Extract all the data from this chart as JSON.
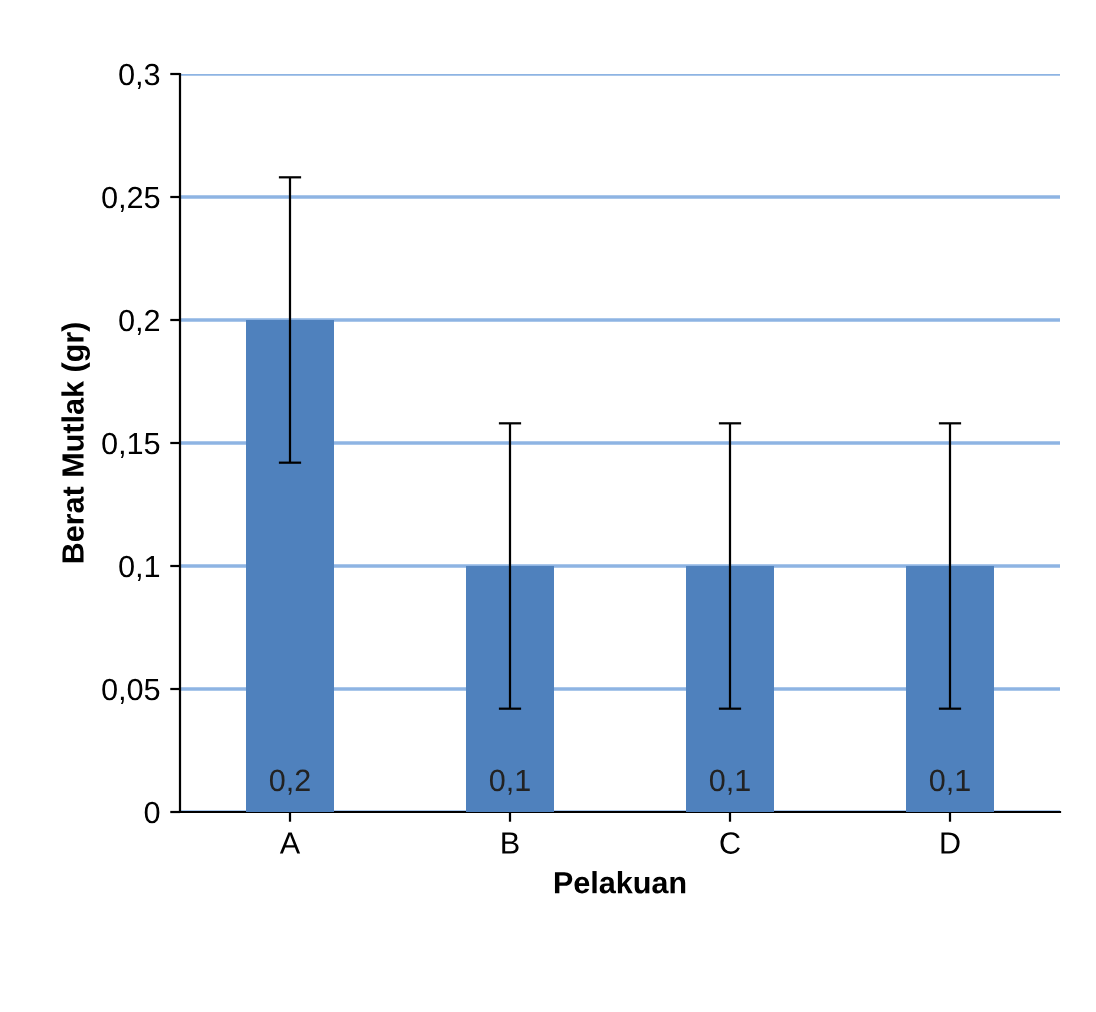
{
  "chart_data": {
    "type": "bar",
    "xlabel": "Pelakuan",
    "ylabel": "Berat Mutlak (gr)",
    "categories": [
      "A",
      "B",
      "C",
      "D"
    ],
    "values": [
      0.2,
      0.1,
      0.1,
      0.1
    ],
    "errors": [
      0.058,
      0.058,
      0.058,
      0.058
    ],
    "value_labels": [
      "0,2",
      "0,1",
      "0,1",
      "0,1"
    ],
    "color": "#4f81bd",
    "ylim": [
      0,
      0.3
    ],
    "yticks": [
      0,
      {
        "value": 0.05,
        "label": "0,05"
      },
      {
        "value": 0.1,
        "label": "0,1"
      },
      {
        "value": 0.15,
        "label": "0,15"
      },
      {
        "value": 0.2,
        "label": "0,2"
      },
      {
        "value": 0.25,
        "label": "0,25"
      },
      {
        "value": 0.3,
        "label": "0,3"
      }
    ],
    "grid": "y",
    "legend": false
  }
}
